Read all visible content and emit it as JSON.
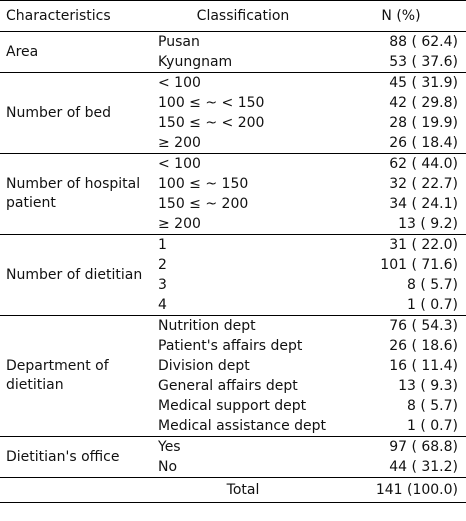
{
  "header": {
    "characteristics": "Characteristics",
    "classification": "Classification",
    "n_percent": "N (%)"
  },
  "groups": [
    {
      "label": "Area",
      "rows": [
        {
          "classification": "Pusan",
          "value": "88 (  62.4)"
        },
        {
          "classification": "Kyungnam",
          "value": "53 (  37.6)"
        }
      ]
    },
    {
      "label": "Number of bed",
      "rows": [
        {
          "classification": "< 100",
          "value": "45 (  31.9)"
        },
        {
          "classification": "100 ≤ ~ < 150",
          "value": "42 (  29.8)"
        },
        {
          "classification": "150 ≤ ~ < 200",
          "value": "28 (  19.9)"
        },
        {
          "classification": "≥ 200",
          "value": "26 (  18.4)"
        }
      ]
    },
    {
      "label": "Number of hospital patient",
      "rows": [
        {
          "classification": "< 100",
          "value": "62 (  44.0)"
        },
        {
          "classification": "100 ≤ ~ 150",
          "value": "32 (  22.7)"
        },
        {
          "classification": "150 ≤ ~ 200",
          "value": "34 (  24.1)"
        },
        {
          "classification": "≥ 200",
          "value": "13 (    9.2)"
        }
      ]
    },
    {
      "label": "Number of dietitian",
      "rows": [
        {
          "classification": "1",
          "value": "31 (  22.0)"
        },
        {
          "classification": "2",
          "value": "101 (  71.6)"
        },
        {
          "classification": "3",
          "value": "8 (    5.7)"
        },
        {
          "classification": "4",
          "value": "1 (    0.7)"
        }
      ]
    },
    {
      "label": "Department of dietitian",
      "rows": [
        {
          "classification": "Nutrition dept",
          "value": "76 (  54.3)"
        },
        {
          "classification": "Patient's affairs dept",
          "value": "26 (  18.6)"
        },
        {
          "classification": "Division dept",
          "value": "16 (  11.4)"
        },
        {
          "classification": "General affairs dept",
          "value": "13 (    9.3)"
        },
        {
          "classification": "Medical support dept",
          "value": "8 (    5.7)"
        },
        {
          "classification": "Medical assistance dept",
          "value": "1 (    0.7)"
        }
      ]
    },
    {
      "label": "Dietitian's office",
      "rows": [
        {
          "classification": "Yes",
          "value": "97 (  68.8)"
        },
        {
          "classification": "No",
          "value": "44 (  31.2)"
        }
      ]
    }
  ],
  "total": {
    "label": "Total",
    "value": "141 (100.0)"
  }
}
